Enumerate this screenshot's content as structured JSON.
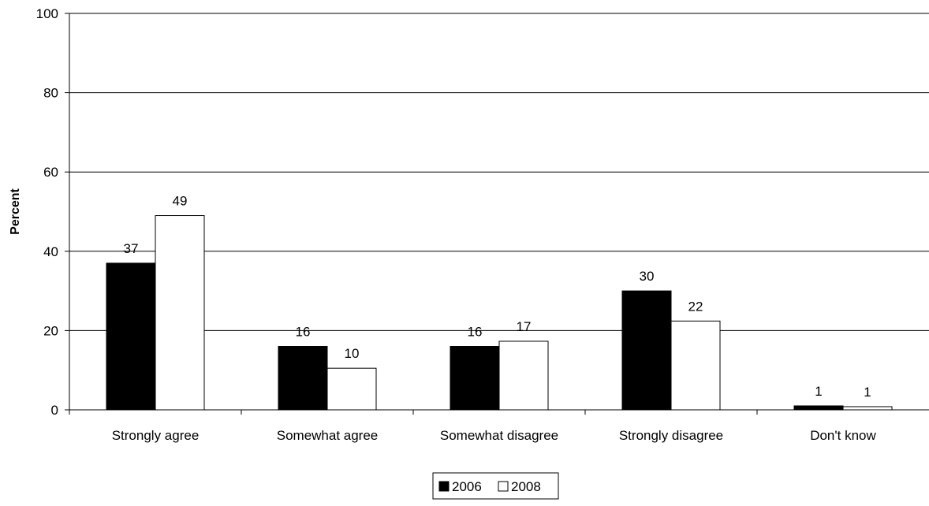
{
  "chart_data": {
    "type": "bar",
    "title": "",
    "xlabel": "",
    "ylabel": "Percent",
    "ylim": [
      0,
      100
    ],
    "yticks": [
      0,
      20,
      40,
      60,
      80,
      100
    ],
    "grid": true,
    "legend_position": "bottom",
    "categories": [
      "Strongly agree",
      "Somewhat agree",
      "Somewhat disagree",
      "Strongly disagree",
      "Don't know"
    ],
    "series": [
      {
        "name": "2006",
        "color": "#000000",
        "values": [
          37,
          16,
          16,
          30,
          1
        ],
        "labels": [
          "37",
          "16",
          "16",
          "30",
          "1"
        ]
      },
      {
        "name": "2008",
        "color": "#ffffff",
        "values": [
          49,
          10.5,
          17.3,
          22.4,
          0.8
        ],
        "labels": [
          "49",
          "10",
          "17",
          "22",
          "1"
        ]
      }
    ]
  }
}
